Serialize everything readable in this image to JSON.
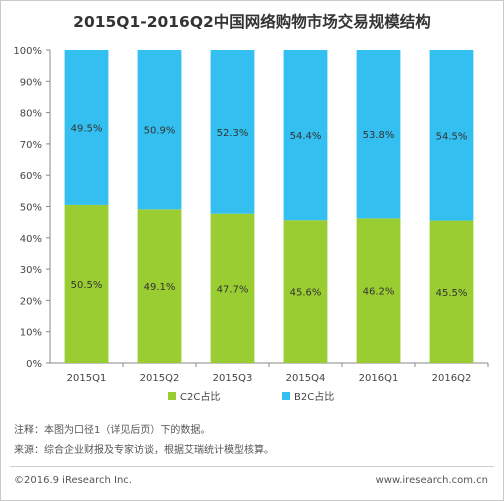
{
  "title": "2015Q1-2016Q2中国网络购物市场交易规模结构",
  "notes": [
    "注释：本图为口径1（详见后页）下的数据。",
    "来源：综合企业财报及专家访谈，根据艾瑞统计模型核算。"
  ],
  "footer": {
    "left": "©2016.9 iResearch Inc.",
    "right": "www.iresearch.com.cn"
  },
  "colors": {
    "c2c": "#9acd32",
    "b2c": "#33bff0"
  },
  "chart_data": {
    "type": "bar",
    "stacked": true,
    "categories": [
      "2015Q1",
      "2015Q2",
      "2015Q3",
      "2015Q4",
      "2016Q1",
      "2016Q2"
    ],
    "series": [
      {
        "name": "C2C占比",
        "values": [
          50.5,
          49.1,
          47.7,
          45.6,
          46.2,
          45.5
        ],
        "labels": [
          "50.5%",
          "49.1%",
          "47.7%",
          "45.6%",
          "46.2%",
          "45.5%"
        ]
      },
      {
        "name": "B2C占比",
        "values": [
          49.5,
          50.9,
          52.3,
          54.4,
          53.8,
          54.5
        ],
        "labels": [
          "49.5%",
          "50.9%",
          "52.3%",
          "54.4%",
          "53.8%",
          "54.5%"
        ]
      }
    ],
    "y_ticks": [
      "0%",
      "10%",
      "20%",
      "30%",
      "40%",
      "50%",
      "60%",
      "70%",
      "80%",
      "90%",
      "100%"
    ],
    "ylim": [
      0,
      100
    ],
    "legend_position": "bottom"
  }
}
